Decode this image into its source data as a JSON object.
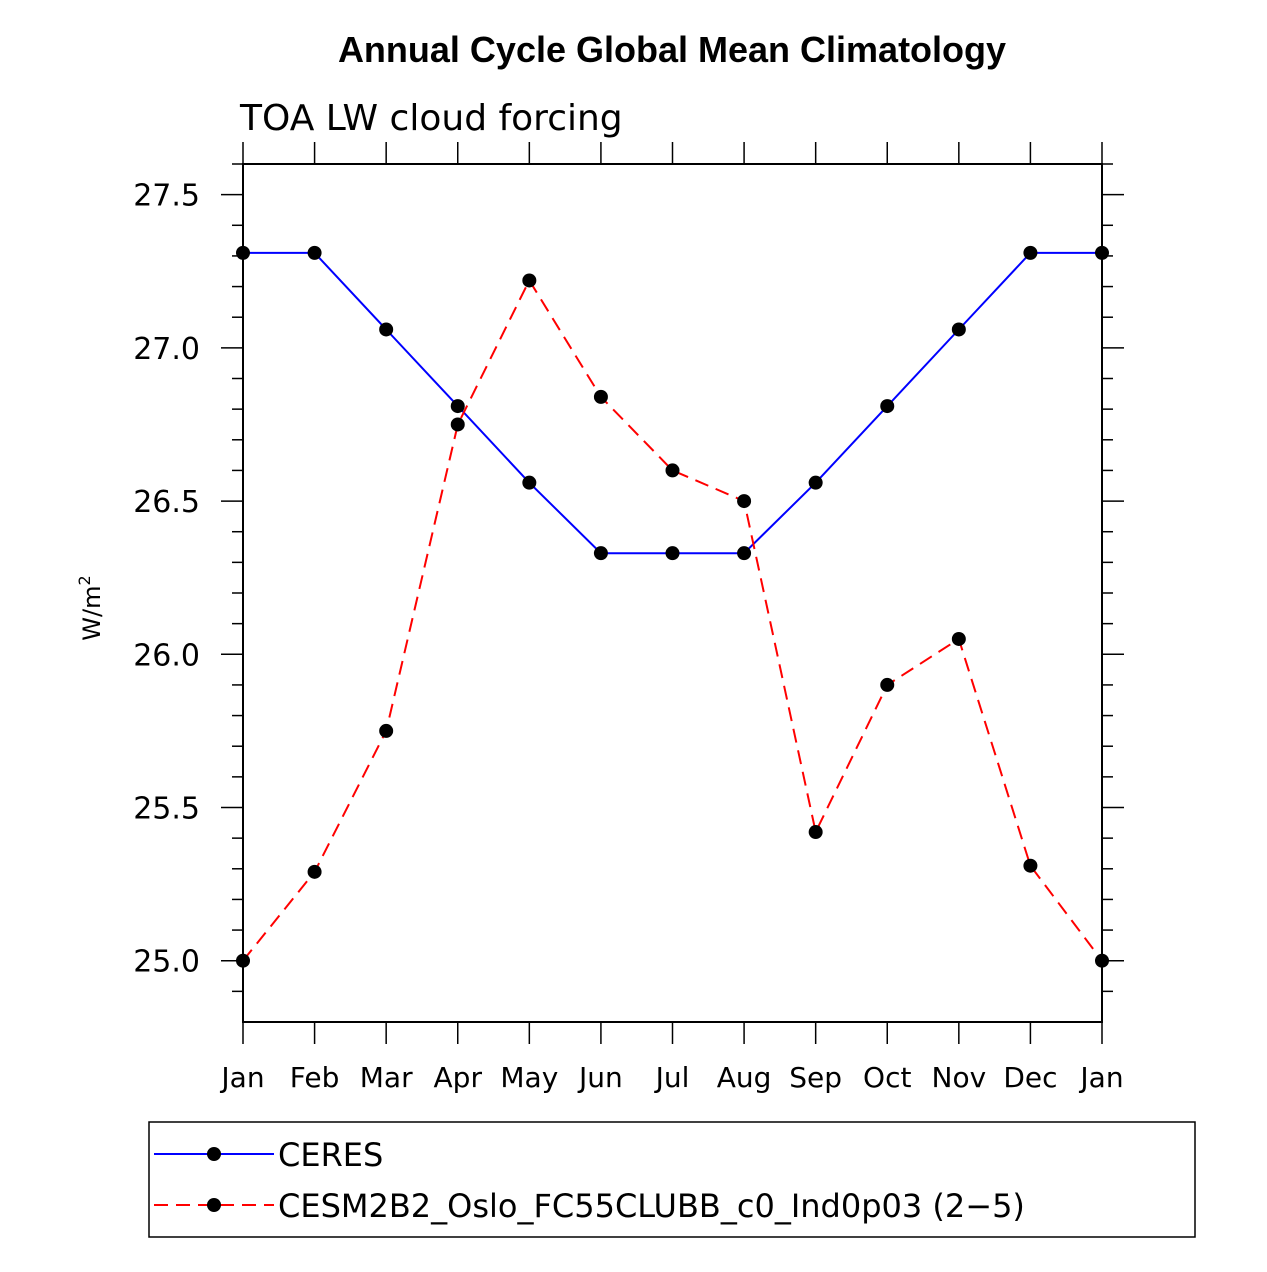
{
  "chart_data": {
    "type": "line",
    "title": "Annual Cycle Global Mean Climatology",
    "subtitle": "TOA LW cloud forcing",
    "ylabel": "W/m",
    "ylabel_superscript": "2",
    "xlabel": "",
    "categories": [
      "Jan",
      "Feb",
      "Mar",
      "Apr",
      "May",
      "Jun",
      "Jul",
      "Aug",
      "Sep",
      "Oct",
      "Nov",
      "Dec",
      "Jan"
    ],
    "ylim": [
      24.8,
      27.6
    ],
    "yticks": [
      25.0,
      25.5,
      26.0,
      26.5,
      27.0,
      27.5
    ],
    "ytick_labels": [
      "25.0",
      "25.5",
      "26.0",
      "26.5",
      "27.0",
      "27.5"
    ],
    "series": [
      {
        "name": "CERES",
        "color": "#0000ff",
        "style": "solid",
        "values": [
          27.31,
          27.31,
          27.06,
          26.81,
          26.56,
          26.33,
          26.33,
          26.33,
          26.56,
          26.81,
          27.06,
          27.31,
          27.31
        ]
      },
      {
        "name": "CESM2B2_Oslo_FC55CLUBB_c0_Ind0p03 (2−5)",
        "color": "#ff0000",
        "style": "dashed",
        "values": [
          25.0,
          25.29,
          25.75,
          26.75,
          27.22,
          26.84,
          26.6,
          26.5,
          25.42,
          25.9,
          26.05,
          25.31,
          25.0
        ]
      }
    ],
    "legend_position": "bottom"
  }
}
